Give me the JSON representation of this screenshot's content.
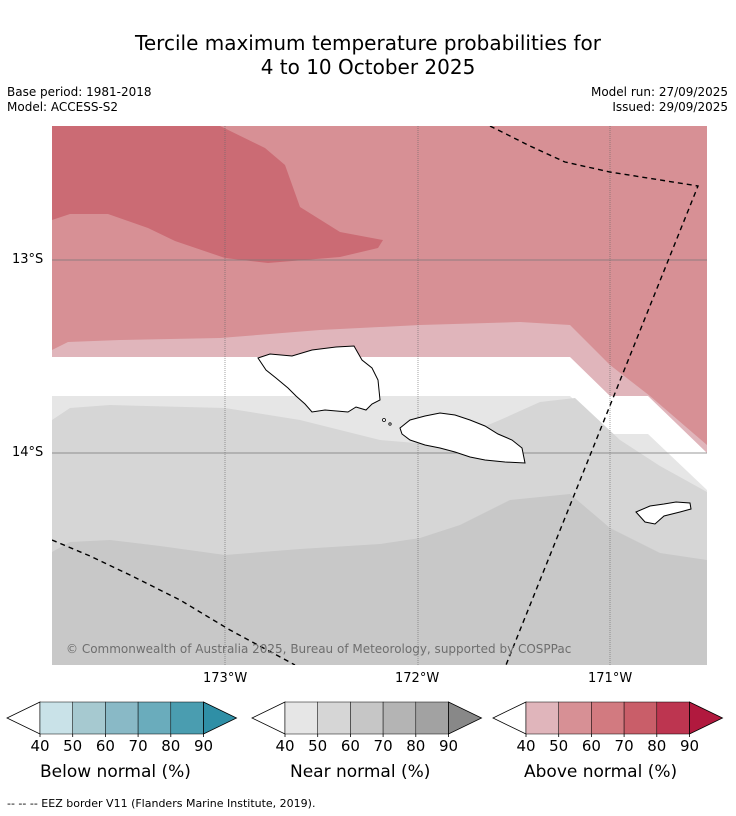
{
  "title_line1": "Tercile maximum temperature probabilities for",
  "title_line2": "4 to 10 October 2025",
  "base_period": "Base period: 1981-2018",
  "model": "Model: ACCESS-S2",
  "model_run": "Model run: 27/09/2025",
  "issued": "Issued: 29/09/2025",
  "copyright": "© Commonwealth of Australia 2025, Bureau of Meteorology, supported by COSPPac",
  "lat_labels": [
    "13°S",
    "14°S"
  ],
  "lon_labels": [
    "173°W",
    "172°W",
    "171°W"
  ],
  "colorbars": [
    {
      "label": "Below normal (%)",
      "ticks": [
        "40",
        "50",
        "60",
        "70",
        "80",
        "90"
      ],
      "colors": [
        "#c9e2e8",
        "#a6c9d0",
        "#89b9c6",
        "#6aacbc",
        "#4a9db0",
        "#2f8fa6"
      ]
    },
    {
      "label": "Near normal (%)",
      "ticks": [
        "40",
        "50",
        "60",
        "70",
        "80",
        "90"
      ],
      "colors": [
        "#e6e6e6",
        "#d6d6d6",
        "#c6c6c6",
        "#b4b4b4",
        "#a2a2a2",
        "#888888"
      ]
    },
    {
      "label": "Above normal (%)",
      "ticks": [
        "40",
        "50",
        "60",
        "70",
        "80",
        "90"
      ],
      "colors": [
        "#e0b5bb",
        "#d79095",
        "#d27a80",
        "#c95e69",
        "#bd3550",
        "#b1193e"
      ]
    }
  ],
  "footer": "--  --  -- EEZ border V11 (Flanders Marine Institute, 2019).",
  "colors": {
    "above_50": "#d79095",
    "above_60": "#cb6b74",
    "above_40": "#e0b5bb",
    "near_40": "#e6e6e6",
    "near_50": "#d6d6d6",
    "near_60": "#c8c8c8"
  }
}
